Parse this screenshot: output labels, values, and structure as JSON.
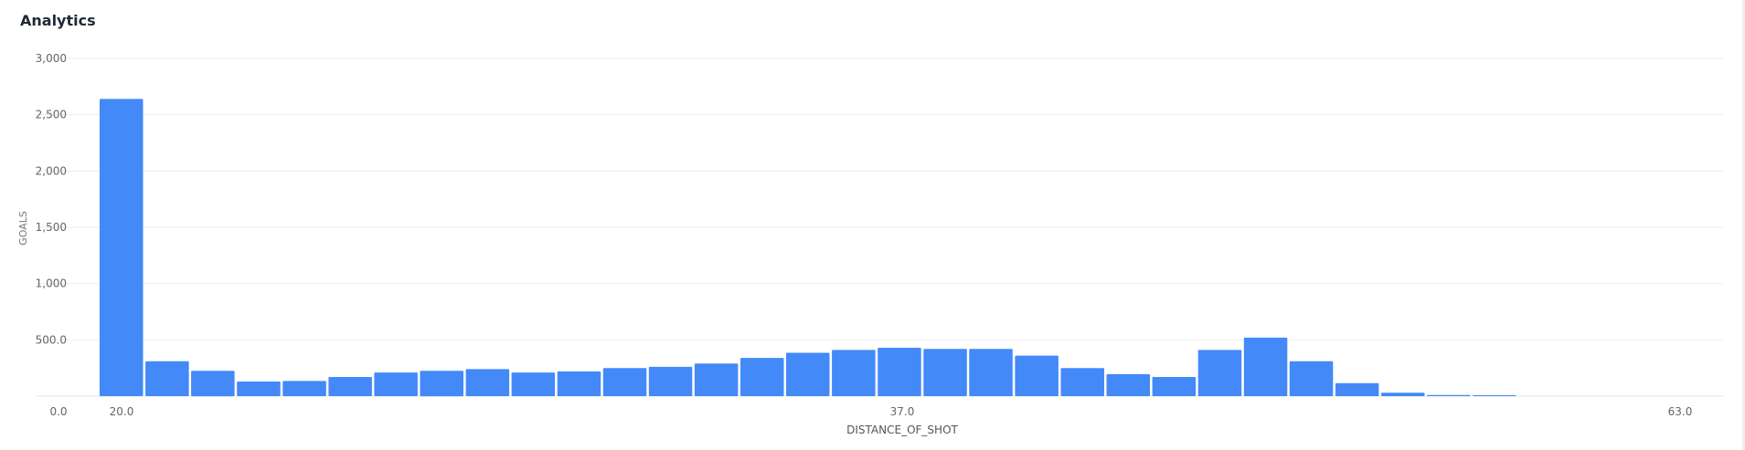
{
  "panel": {
    "title": "Analytics"
  },
  "chart_data": {
    "type": "bar",
    "xlabel": "DISTANCE_OF_SHOT",
    "ylabel": "GOALS",
    "x_ticks": [
      "0.0",
      "20.0",
      "37.0",
      "63.0"
    ],
    "y_ticks": [
      "500.0",
      "1,000",
      "1,500",
      "2,000",
      "2,500",
      "3,000"
    ],
    "ylim": [
      0,
      3000
    ],
    "xlim": [
      0,
      63
    ],
    "grid": true,
    "bar_color": "#4389f8",
    "bins": [
      {
        "x": 20,
        "value": 2640
      },
      {
        "x": 21,
        "value": 310
      },
      {
        "x": 22,
        "value": 225
      },
      {
        "x": 23,
        "value": 130
      },
      {
        "x": 24,
        "value": 135
      },
      {
        "x": 25,
        "value": 170
      },
      {
        "x": 26,
        "value": 210
      },
      {
        "x": 27,
        "value": 225
      },
      {
        "x": 28,
        "value": 240
      },
      {
        "x": 29,
        "value": 210
      },
      {
        "x": 30,
        "value": 220
      },
      {
        "x": 31,
        "value": 250
      },
      {
        "x": 32,
        "value": 260
      },
      {
        "x": 33,
        "value": 290
      },
      {
        "x": 34,
        "value": 340
      },
      {
        "x": 35,
        "value": 385
      },
      {
        "x": 36,
        "value": 410
      },
      {
        "x": 37,
        "value": 430
      },
      {
        "x": 38,
        "value": 420
      },
      {
        "x": 39,
        "value": 420
      },
      {
        "x": 40,
        "value": 360
      },
      {
        "x": 41,
        "value": 250
      },
      {
        "x": 42,
        "value": 195
      },
      {
        "x": 43,
        "value": 170
      },
      {
        "x": 44,
        "value": 410
      },
      {
        "x": 45,
        "value": 520
      },
      {
        "x": 46,
        "value": 310
      },
      {
        "x": 47,
        "value": 115
      },
      {
        "x": 48,
        "value": 30
      },
      {
        "x": 49,
        "value": 10
      },
      {
        "x": 50,
        "value": 8
      }
    ]
  }
}
